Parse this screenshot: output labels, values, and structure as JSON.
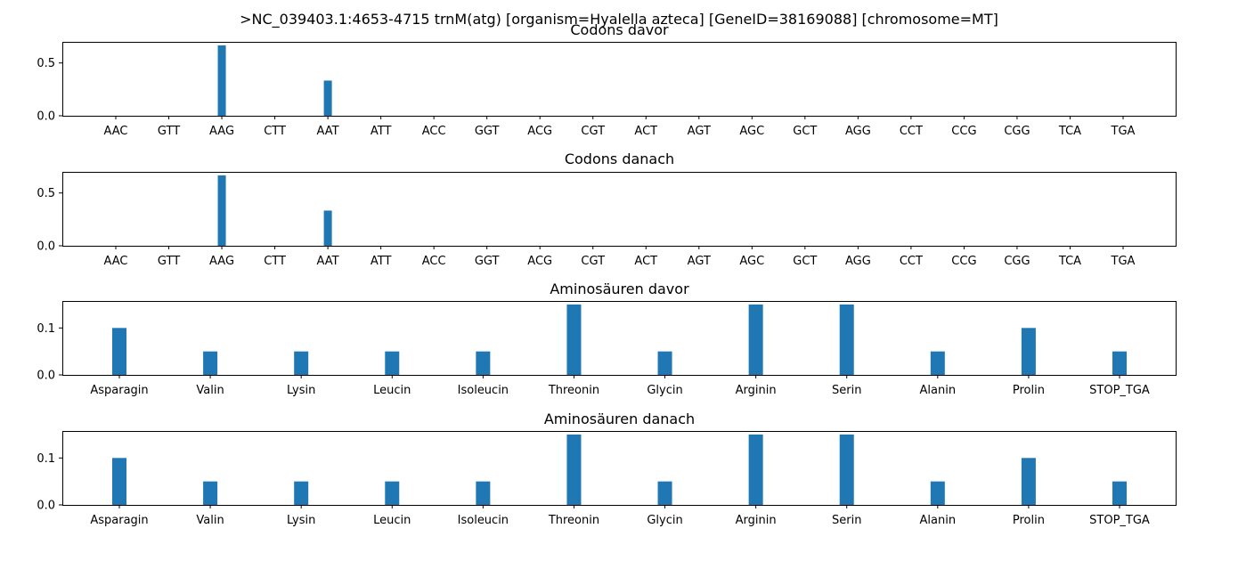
{
  "figure": {
    "suptitle": ">NC_039403.1:4653-4715 trnM(atg) [organism=Hyalella azteca] [GeneID=38169088] [chromosome=MT]"
  },
  "colors": {
    "bar": "#1f77b4",
    "axis": "#000000",
    "background": "#ffffff"
  },
  "chart_data": [
    {
      "type": "bar",
      "title": "Codons davor",
      "categories": [
        "AAC",
        "GTT",
        "AAG",
        "CTT",
        "AAT",
        "ATT",
        "ACC",
        "GGT",
        "ACG",
        "CGT",
        "ACT",
        "AGT",
        "AGC",
        "GCT",
        "AGG",
        "CCT",
        "CCG",
        "CGG",
        "TCA",
        "TGA"
      ],
      "values": [
        0,
        0,
        0.6667,
        0,
        0.3333,
        0,
        0,
        0,
        0,
        0,
        0,
        0,
        0,
        0,
        0,
        0,
        0,
        0,
        0,
        0
      ],
      "yticks": [
        0.0,
        0.5
      ],
      "ytick_labels": [
        "0.0",
        "0.5"
      ],
      "ylim": [
        0,
        0.7
      ]
    },
    {
      "type": "bar",
      "title": "Codons danach",
      "categories": [
        "AAC",
        "GTT",
        "AAG",
        "CTT",
        "AAT",
        "ATT",
        "ACC",
        "GGT",
        "ACG",
        "CGT",
        "ACT",
        "AGT",
        "AGC",
        "GCT",
        "AGG",
        "CCT",
        "CCG",
        "CGG",
        "TCA",
        "TGA"
      ],
      "values": [
        0,
        0,
        0.6667,
        0,
        0.3333,
        0,
        0,
        0,
        0,
        0,
        0,
        0,
        0,
        0,
        0,
        0,
        0,
        0,
        0,
        0
      ],
      "yticks": [
        0.0,
        0.5
      ],
      "ytick_labels": [
        "0.0",
        "0.5"
      ],
      "ylim": [
        0,
        0.7
      ]
    },
    {
      "type": "bar",
      "title": "Aminosäuren davor",
      "categories": [
        "Asparagin",
        "Valin",
        "Lysin",
        "Leucin",
        "Isoleucin",
        "Threonin",
        "Glycin",
        "Arginin",
        "Serin",
        "Alanin",
        "Prolin",
        "STOP_TGA"
      ],
      "values": [
        0.1,
        0.05,
        0.05,
        0.05,
        0.05,
        0.15,
        0.05,
        0.15,
        0.15,
        0.05,
        0.1,
        0.05
      ],
      "yticks": [
        0.0,
        0.1
      ],
      "ytick_labels": [
        "0.0",
        "0.1"
      ],
      "ylim": [
        0,
        0.1575
      ]
    },
    {
      "type": "bar",
      "title": "Aminosäuren danach",
      "categories": [
        "Asparagin",
        "Valin",
        "Lysin",
        "Leucin",
        "Isoleucin",
        "Threonin",
        "Glycin",
        "Arginin",
        "Serin",
        "Alanin",
        "Prolin",
        "STOP_TGA"
      ],
      "values": [
        0.1,
        0.05,
        0.05,
        0.05,
        0.05,
        0.15,
        0.05,
        0.15,
        0.15,
        0.05,
        0.1,
        0.05
      ],
      "yticks": [
        0.0,
        0.1
      ],
      "ytick_labels": [
        "0.0",
        "0.1"
      ],
      "ylim": [
        0,
        0.1575
      ]
    }
  ]
}
